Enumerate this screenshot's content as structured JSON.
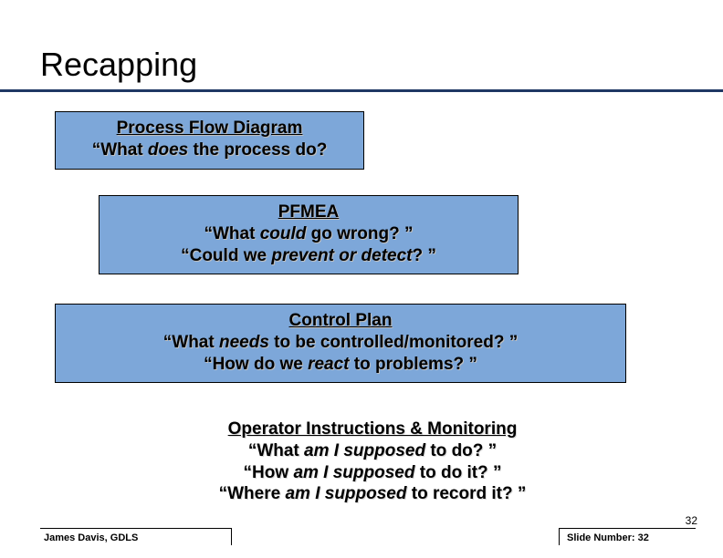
{
  "title": "Recapping",
  "blocks": {
    "b1": {
      "title": "Process Flow Diagram",
      "q1_pre": "“What ",
      "q1_em": "does",
      "q1_post": " the process do?"
    },
    "b2": {
      "title": "PFMEA",
      "q1_pre": "“What ",
      "q1_em": "could",
      "q1_post": " go wrong? ”",
      "q2_pre": "“Could we ",
      "q2_em": "prevent or detect",
      "q2_post": "? ”"
    },
    "b3": {
      "title": "Control Plan",
      "q1_pre": "“What ",
      "q1_em": "needs",
      "q1_post": " to be controlled/monitored? ”",
      "q2_pre": "“How do we ",
      "q2_em": "react",
      "q2_post": " to problems? ”"
    },
    "b4": {
      "title": "Operator Instructions & Monitoring",
      "q1_pre": "“What ",
      "q1_em": "am I supposed",
      "q1_post": " to do? ”",
      "q2_pre": "“How ",
      "q2_em": "am I supposed",
      "q2_post": " to do it? ”",
      "q3_pre": "“Where ",
      "q3_em": "am I supposed",
      "q3_post": " to record it? ”"
    }
  },
  "footer": {
    "left": "James Davis, GDLS",
    "right_label": "Slide Number: ",
    "right_value": "32",
    "corner_page": "32"
  },
  "colors": {
    "block_fill": "#7da7d9",
    "divider": "#1f3864",
    "background": "#ffffff",
    "text": "#000000"
  }
}
